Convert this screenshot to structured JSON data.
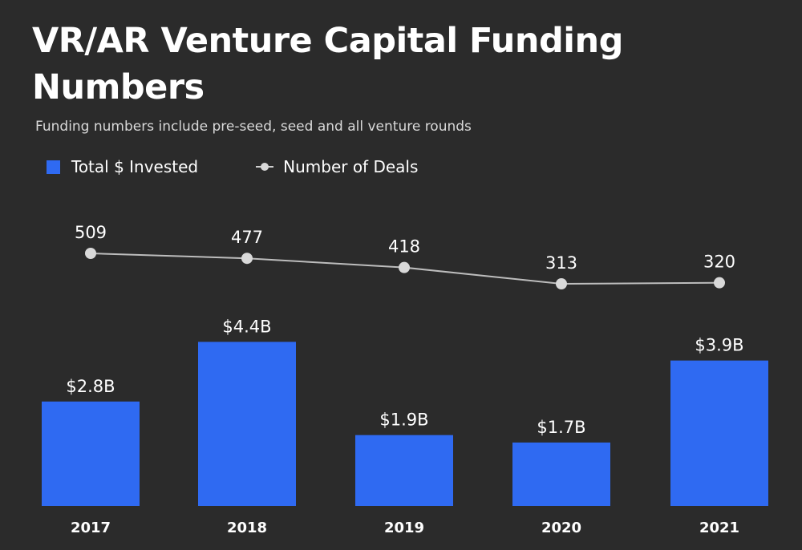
{
  "chart_data": {
    "type": "bar",
    "title": "VR/AR Venture Capital Funding Numbers",
    "subtitle": "Funding numbers include pre-seed, seed and all venture rounds",
    "categories": [
      "2017",
      "2018",
      "2019",
      "2020",
      "2021"
    ],
    "legend": {
      "position": "top-left",
      "items": [
        "Total $ Invested",
        "Number of Deals"
      ]
    },
    "series": [
      {
        "name": "Total $ Invested",
        "type": "bar",
        "values": [
          2.8,
          4.4,
          1.9,
          1.7,
          3.9
        ],
        "labels": [
          "$2.8B",
          "$4.4B",
          "$1.9B",
          "$1.7B",
          "$3.9B"
        ],
        "color": "#2f6af2"
      },
      {
        "name": "Number of Deals",
        "type": "line",
        "values": [
          509,
          477,
          418,
          313,
          320
        ],
        "labels": [
          "509",
          "477",
          "418",
          "313",
          "320"
        ],
        "color": "#d9d9d9"
      }
    ],
    "xlabel": "",
    "ylabel": "",
    "grid": false,
    "background": "#2b2b2b"
  }
}
